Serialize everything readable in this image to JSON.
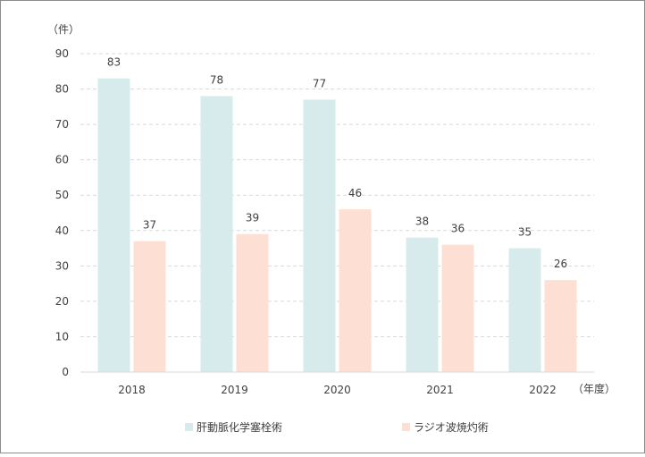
{
  "chart_data": {
    "type": "bar",
    "unit_label": "（件）",
    "x_unit_label": "（年度）",
    "categories": [
      "2018",
      "2019",
      "2020",
      "2021",
      "2022"
    ],
    "series": [
      {
        "name": "肝動脈化学塞栓術",
        "values": [
          83,
          78,
          77,
          38,
          35
        ],
        "color": "#d7ebec"
      },
      {
        "name": "ラジオ波焼灼術",
        "values": [
          37,
          39,
          46,
          36,
          26
        ],
        "color": "#fde0d3"
      }
    ],
    "yticks": [
      "0",
      "10",
      "20",
      "30",
      "40",
      "50",
      "60",
      "70",
      "80",
      "90"
    ],
    "ylim": [
      0,
      90
    ],
    "grid": true,
    "legend_position": "bottom"
  }
}
